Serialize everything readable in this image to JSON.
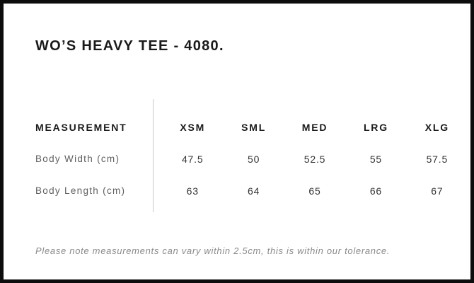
{
  "chart_data": {
    "type": "table",
    "title": "WO’S HEAVY TEE - 4080.",
    "columns": [
      "MEASUREMENT",
      "XSM",
      "SML",
      "MED",
      "LRG",
      "XLG"
    ],
    "rows": [
      [
        "Body Width (cm)",
        47.5,
        50,
        52.5,
        55,
        57.5
      ],
      [
        "Body Length (cm)",
        63,
        64,
        65,
        66,
        67
      ]
    ],
    "note": "Please note measurements can vary within 2.5cm, this is within our tolerance.",
    "layout": {
      "divider_between_label_and_sizes": true,
      "grid": "off",
      "value_alignment": "center"
    }
  },
  "colors": {
    "frame_border": "#0d0d0d",
    "background": "#ffffff",
    "title_text": "#1a1a1a",
    "header_text": "#1a1a1a",
    "label_text": "#606060",
    "value_text": "#333333",
    "note_text": "#8a8a8a",
    "divider": "#c9c9c9"
  }
}
